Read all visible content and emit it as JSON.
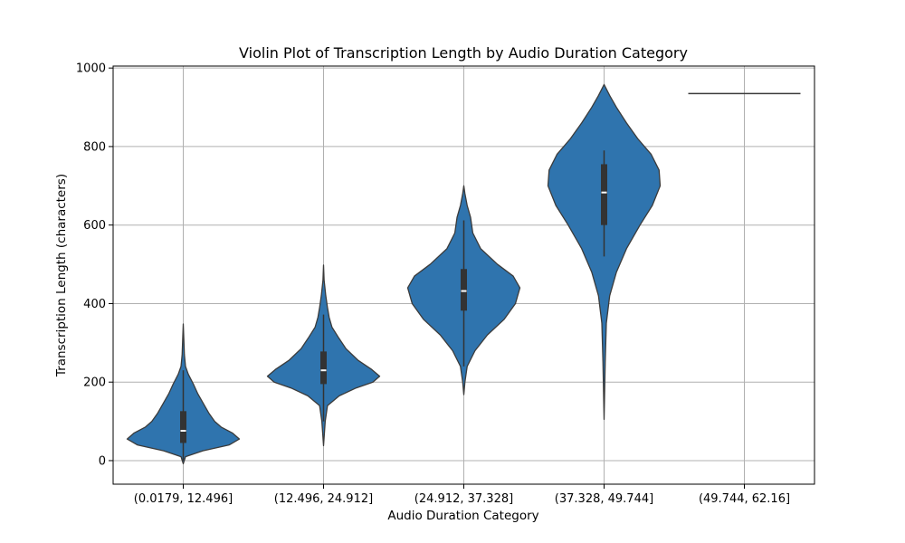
{
  "chart_data": {
    "type": "violin",
    "title": "Violin Plot of Transcription Length by Audio Duration Category",
    "xlabel": "Audio Duration Category",
    "ylabel": "Transcription Length (characters)",
    "ylim": [
      -60,
      1005
    ],
    "yticks": [
      0,
      200,
      400,
      600,
      800,
      1000
    ],
    "grid": true,
    "categories": [
      "(0.0179, 12.496]",
      "(12.496, 24.912]",
      "(24.912, 37.328]",
      "(37.328, 49.744]",
      "(49.744, 62.16]"
    ],
    "violins": [
      {
        "category": "(0.0179, 12.496]",
        "min": -8,
        "q1": 45,
        "median": 76,
        "q3": 126,
        "whisker_low": 0,
        "whisker_high": 230,
        "max": 348,
        "density": [
          [
            -8,
            0
          ],
          [
            10,
            0.04
          ],
          [
            25,
            0.35
          ],
          [
            40,
            0.82
          ],
          [
            55,
            1.0
          ],
          [
            70,
            0.88
          ],
          [
            85,
            0.68
          ],
          [
            100,
            0.56
          ],
          [
            120,
            0.46
          ],
          [
            145,
            0.36
          ],
          [
            170,
            0.26
          ],
          [
            195,
            0.18
          ],
          [
            220,
            0.09
          ],
          [
            240,
            0.04
          ],
          [
            270,
            0.02
          ],
          [
            310,
            0.01
          ],
          [
            348,
            0
          ]
        ]
      },
      {
        "category": "(12.496, 24.912]",
        "min": 38,
        "q1": 195,
        "median": 230,
        "q3": 278,
        "whisker_low": 100,
        "whisker_high": 372,
        "max": 498,
        "density": [
          [
            38,
            0
          ],
          [
            100,
            0.03
          ],
          [
            140,
            0.07
          ],
          [
            165,
            0.28
          ],
          [
            185,
            0.58
          ],
          [
            200,
            0.88
          ],
          [
            215,
            1.0
          ],
          [
            232,
            0.86
          ],
          [
            255,
            0.62
          ],
          [
            285,
            0.4
          ],
          [
            315,
            0.26
          ],
          [
            340,
            0.15
          ],
          [
            365,
            0.1
          ],
          [
            390,
            0.07
          ],
          [
            420,
            0.04
          ],
          [
            460,
            0.01
          ],
          [
            498,
            0
          ]
        ]
      },
      {
        "category": "(24.912, 37.328]",
        "min": 168,
        "q1": 382,
        "median": 432,
        "q3": 488,
        "whisker_low": 240,
        "whisker_high": 612,
        "max": 700,
        "density": [
          [
            168,
            0
          ],
          [
            200,
            0.02
          ],
          [
            240,
            0.06
          ],
          [
            280,
            0.2
          ],
          [
            320,
            0.42
          ],
          [
            360,
            0.72
          ],
          [
            400,
            0.92
          ],
          [
            440,
            1.0
          ],
          [
            470,
            0.88
          ],
          [
            500,
            0.6
          ],
          [
            540,
            0.3
          ],
          [
            580,
            0.16
          ],
          [
            620,
            0.12
          ],
          [
            650,
            0.06
          ],
          [
            680,
            0.02
          ],
          [
            700,
            0
          ]
        ]
      },
      {
        "category": "(37.328, 49.744]",
        "min": 105,
        "q1": 600,
        "median": 683,
        "q3": 755,
        "whisker_low": 520,
        "whisker_high": 790,
        "max": 958,
        "density": [
          [
            105,
            0
          ],
          [
            250,
            0.02
          ],
          [
            350,
            0.04
          ],
          [
            420,
            0.1
          ],
          [
            480,
            0.22
          ],
          [
            540,
            0.4
          ],
          [
            600,
            0.64
          ],
          [
            650,
            0.86
          ],
          [
            700,
            1.0
          ],
          [
            740,
            0.98
          ],
          [
            780,
            0.84
          ],
          [
            820,
            0.6
          ],
          [
            860,
            0.4
          ],
          [
            900,
            0.22
          ],
          [
            930,
            0.1
          ],
          [
            958,
            0
          ]
        ]
      },
      {
        "category": "(49.744, 62.16]",
        "single_value": 935
      }
    ],
    "colors": {
      "fill": "#2f74ae",
      "edge": "#3b3b3b",
      "box": "#333333",
      "median": "#ffffff",
      "grid": "#b0b0b0"
    }
  }
}
